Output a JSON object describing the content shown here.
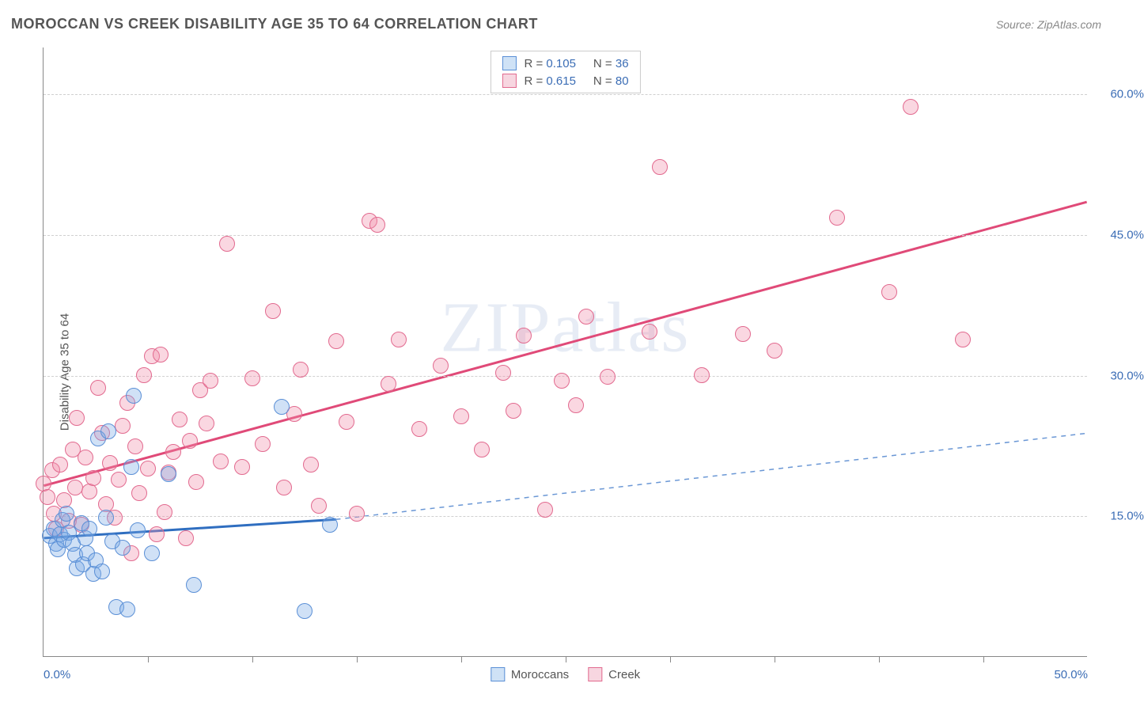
{
  "title": "MOROCCAN VS CREEK DISABILITY AGE 35 TO 64 CORRELATION CHART",
  "source": "Source: ZipAtlas.com",
  "ylabel": "Disability Age 35 to 64",
  "watermark": "ZIPatlas",
  "chart": {
    "type": "scatter",
    "xlim": [
      0,
      50
    ],
    "ylim": [
      0,
      65
    ],
    "xtick_minor_step": 5,
    "xticks_labeled": [
      {
        "v": 0,
        "label": "0.0%",
        "align": "left"
      },
      {
        "v": 50,
        "label": "50.0%",
        "align": "right"
      }
    ],
    "yticks_labeled": [
      {
        "v": 15,
        "label": "15.0%"
      },
      {
        "v": 30,
        "label": "30.0%"
      },
      {
        "v": 45,
        "label": "45.0%"
      },
      {
        "v": 60,
        "label": "60.0%"
      }
    ],
    "background_color": "#ffffff",
    "grid_color": "#d0d0d0",
    "axis_color": "#888888",
    "tick_label_color": "#3b6db5",
    "marker_radius": 10,
    "marker_border_width": 1.5,
    "series": [
      {
        "name": "Moroccans",
        "fill": "rgba(120,170,230,0.35)",
        "stroke": "#5a8fd6",
        "swatch_fill": "#cfe2f6",
        "swatch_stroke": "#5a8fd6",
        "R": "0.105",
        "N": "36",
        "trend": {
          "x1": 0,
          "y1": 12.6,
          "x2": 14,
          "y2": 14.6,
          "ext_x2": 50,
          "ext_y2": 23.8,
          "solid_color": "#2f6ec0",
          "solid_width": 3,
          "dash_color": "#6a97d5",
          "dash_width": 1.5,
          "dash": "6,6"
        },
        "points": [
          [
            0.3,
            12.8
          ],
          [
            0.5,
            13.6
          ],
          [
            0.6,
            12.0
          ],
          [
            0.7,
            11.4
          ],
          [
            0.8,
            13.0
          ],
          [
            0.9,
            14.5
          ],
          [
            1.0,
            12.4
          ],
          [
            1.1,
            15.2
          ],
          [
            1.2,
            13.2
          ],
          [
            1.4,
            12.0
          ],
          [
            1.5,
            10.8
          ],
          [
            1.6,
            9.4
          ],
          [
            1.8,
            14.2
          ],
          [
            1.9,
            9.8
          ],
          [
            2.0,
            12.6
          ],
          [
            2.1,
            11.0
          ],
          [
            2.2,
            13.6
          ],
          [
            2.4,
            8.8
          ],
          [
            2.5,
            10.2
          ],
          [
            2.6,
            23.2
          ],
          [
            2.8,
            9.0
          ],
          [
            3.0,
            14.8
          ],
          [
            3.1,
            24.0
          ],
          [
            3.3,
            12.2
          ],
          [
            3.5,
            5.2
          ],
          [
            3.8,
            11.6
          ],
          [
            4.0,
            5.0
          ],
          [
            4.2,
            20.2
          ],
          [
            4.3,
            27.8
          ],
          [
            4.5,
            13.4
          ],
          [
            5.2,
            11.0
          ],
          [
            6.0,
            19.4
          ],
          [
            7.2,
            7.6
          ],
          [
            11.4,
            26.6
          ],
          [
            12.5,
            4.8
          ],
          [
            13.7,
            14.0
          ]
        ]
      },
      {
        "name": "Creek",
        "fill": "rgba(240,140,170,0.35)",
        "stroke": "#e26a8f",
        "swatch_fill": "#f7d6e0",
        "swatch_stroke": "#e26a8f",
        "R": "0.615",
        "N": "80",
        "trend": {
          "x1": 0,
          "y1": 18.2,
          "x2": 50,
          "y2": 48.5,
          "solid_color": "#e04a78",
          "solid_width": 3
        },
        "points": [
          [
            0.0,
            18.4
          ],
          [
            0.2,
            17.0
          ],
          [
            0.4,
            19.8
          ],
          [
            0.5,
            15.2
          ],
          [
            0.6,
            13.6
          ],
          [
            0.8,
            20.4
          ],
          [
            1.0,
            16.6
          ],
          [
            1.2,
            14.4
          ],
          [
            1.4,
            22.0
          ],
          [
            1.5,
            18.0
          ],
          [
            1.6,
            25.4
          ],
          [
            1.8,
            14.0
          ],
          [
            2.0,
            21.2
          ],
          [
            2.2,
            17.6
          ],
          [
            2.4,
            19.0
          ],
          [
            2.6,
            28.6
          ],
          [
            2.8,
            23.8
          ],
          [
            3.0,
            16.2
          ],
          [
            3.2,
            20.6
          ],
          [
            3.4,
            14.8
          ],
          [
            3.6,
            18.8
          ],
          [
            3.8,
            24.6
          ],
          [
            4.0,
            27.0
          ],
          [
            4.2,
            11.0
          ],
          [
            4.4,
            22.4
          ],
          [
            4.6,
            17.4
          ],
          [
            4.8,
            30.0
          ],
          [
            5.0,
            20.0
          ],
          [
            5.2,
            32.0
          ],
          [
            5.4,
            13.0
          ],
          [
            5.6,
            32.2
          ],
          [
            5.8,
            15.4
          ],
          [
            6.0,
            19.6
          ],
          [
            6.2,
            21.8
          ],
          [
            6.5,
            25.2
          ],
          [
            6.8,
            12.6
          ],
          [
            7.0,
            23.0
          ],
          [
            7.3,
            18.6
          ],
          [
            7.5,
            28.4
          ],
          [
            7.8,
            24.8
          ],
          [
            8.0,
            29.4
          ],
          [
            8.5,
            20.8
          ],
          [
            8.8,
            44.0
          ],
          [
            9.5,
            20.2
          ],
          [
            10.0,
            29.6
          ],
          [
            10.5,
            22.6
          ],
          [
            11.0,
            36.8
          ],
          [
            11.5,
            18.0
          ],
          [
            12.0,
            25.8
          ],
          [
            12.3,
            30.6
          ],
          [
            12.8,
            20.4
          ],
          [
            13.2,
            16.0
          ],
          [
            14.0,
            33.6
          ],
          [
            14.5,
            25.0
          ],
          [
            15.0,
            15.2
          ],
          [
            15.6,
            46.4
          ],
          [
            16.0,
            46.0
          ],
          [
            16.5,
            29.0
          ],
          [
            17.0,
            33.8
          ],
          [
            18.0,
            24.2
          ],
          [
            19.0,
            31.0
          ],
          [
            20.0,
            25.6
          ],
          [
            21.0,
            22.0
          ],
          [
            22.0,
            30.2
          ],
          [
            22.5,
            26.2
          ],
          [
            23.0,
            34.2
          ],
          [
            24.0,
            15.6
          ],
          [
            24.8,
            29.4
          ],
          [
            25.5,
            26.8
          ],
          [
            26.0,
            36.2
          ],
          [
            27.0,
            29.8
          ],
          [
            29.0,
            34.6
          ],
          [
            29.5,
            52.2
          ],
          [
            31.5,
            30.0
          ],
          [
            33.5,
            34.4
          ],
          [
            35.0,
            32.6
          ],
          [
            38.0,
            46.8
          ],
          [
            40.5,
            38.8
          ],
          [
            41.5,
            58.6
          ],
          [
            44.0,
            33.8
          ]
        ]
      }
    ],
    "stats_legend_border": "#cccccc"
  }
}
